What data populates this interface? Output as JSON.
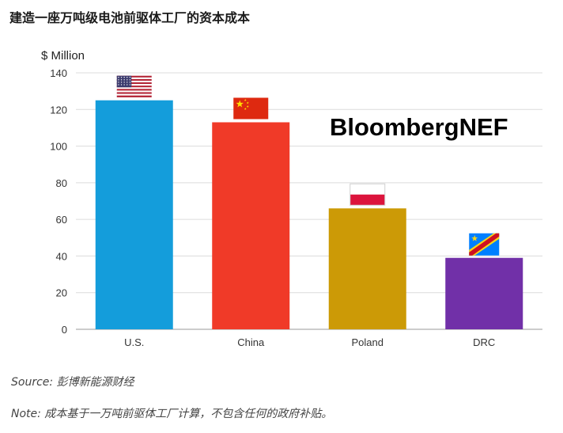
{
  "title": "建造一座万吨级电池前驱体工厂的资本成本",
  "brand": "BloombergNEF",
  "source": "Source: 彭博新能源财经",
  "note": "Note: 成本基于一万吨前驱体工厂计算，不包含任何的政府补贴。",
  "colors": {
    "us": "#149ddb",
    "china": "#f03a28",
    "poland": "#cc9a06",
    "drc": "#7130a8"
  },
  "flag_icons": [
    "us-flag-icon",
    "china-flag-icon",
    "poland-flag-icon",
    "drc-flag-icon"
  ],
  "chart_data": {
    "type": "bar",
    "categories": [
      "U.S.",
      "China",
      "Poland",
      "DRC"
    ],
    "values": [
      125,
      113,
      66,
      39
    ],
    "ylabel": "$ Million",
    "xlabel": "",
    "ylim": [
      0,
      140
    ],
    "yticks": [
      0,
      20,
      40,
      60,
      80,
      100,
      120,
      140
    ],
    "grid": true,
    "legend": false
  }
}
